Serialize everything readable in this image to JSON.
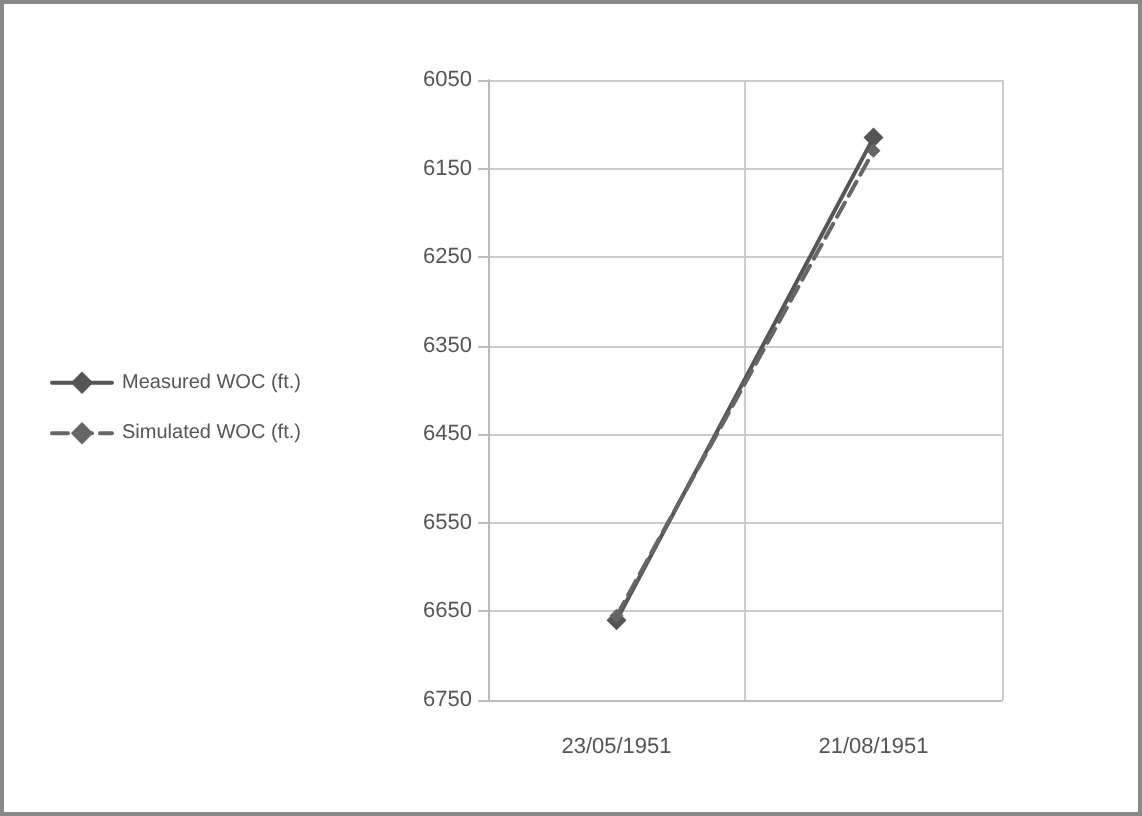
{
  "chart_data": {
    "type": "line",
    "categories": [
      "23/05/1951",
      "21/08/1951"
    ],
    "series": [
      {
        "name": "Measured WOC (ft.)",
        "color": "#555555",
        "values": [
          6660,
          6115
        ],
        "line_style": "solid"
      },
      {
        "name": "Simulated WOC (ft.)",
        "color": "#666666",
        "values": [
          6655,
          6130
        ],
        "line_style": "dashed"
      }
    ],
    "ylim": [
      6750,
      6050
    ],
    "yticks": [
      6050,
      6150,
      6250,
      6350,
      6450,
      6550,
      6650,
      6750
    ],
    "grid": true,
    "legend": "left",
    "marker": "diamond"
  }
}
